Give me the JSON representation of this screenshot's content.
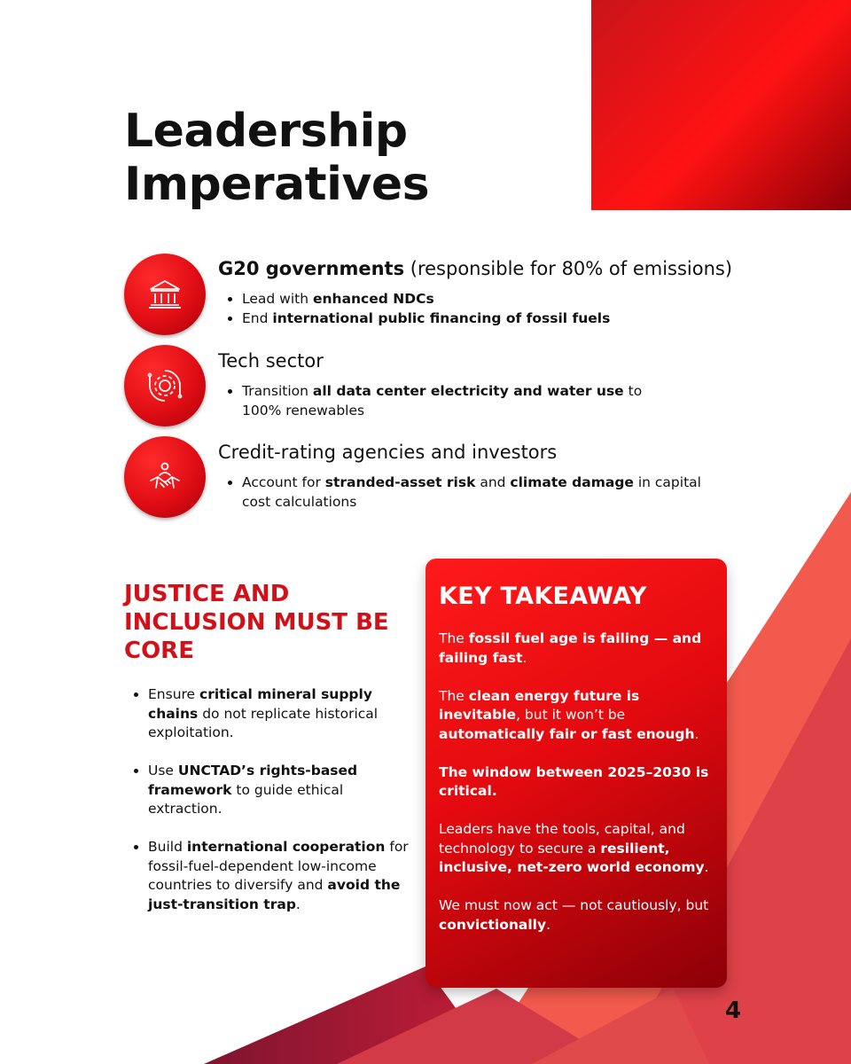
{
  "title": {
    "line1": "Leadership",
    "line2": "Imperatives"
  },
  "imperatives": [
    {
      "icon": "government-building-icon",
      "head_bold": "G20 governments",
      "head_rest": " (responsible for 80% of emissions)",
      "bullets": [
        {
          "pre": "Lead with ",
          "bold": "enhanced NDCs",
          "post": ""
        },
        {
          "pre": "End ",
          "bold": "international public financing of fossil fuels",
          "post": ""
        }
      ]
    },
    {
      "icon": "tech-gear-circuit-icon",
      "head_bold": "",
      "head_rest": "Tech sector",
      "bullets": [
        {
          "pre": "Transition ",
          "bold": "all data center electricity and water use",
          "post": " to 100% renewables"
        }
      ]
    },
    {
      "icon": "handshake-investors-icon",
      "head_bold": "",
      "head_rest": "Credit-rating agencies and investors",
      "bullets": [
        {
          "pre": "Account for ",
          "bold": "stranded-asset risk",
          "mid": " and ",
          "bold2": "climate damage",
          "post": " in capital cost calculations"
        }
      ]
    }
  ],
  "justice": {
    "title": "JUSTICE AND INCLUSION MUST BE CORE",
    "items": [
      {
        "pre": "Ensure ",
        "bold": "critical mineral supply chains",
        "post": " do not replicate historical exploitation."
      },
      {
        "pre": "Use ",
        "bold": "UNCTAD’s rights-based framework",
        "post": " to guide ethical extraction."
      },
      {
        "pre": "Build ",
        "bold": "international cooperation",
        "mid": " for fossil-fuel-dependent low-income countries to diversify and ",
        "bold2": "avoid the just-transition trap",
        "post": "."
      }
    ]
  },
  "takeaway": {
    "title": "KEY TAKEAWAY",
    "p1": {
      "pre": "The ",
      "bold": "fossil fuel age is failing — and failing fast",
      "post": "."
    },
    "p2": {
      "pre": "The ",
      "bold": "clean energy future is inevitable",
      "mid": ", but it won’t be ",
      "bold2": "automatically fair or fast enough",
      "post": "."
    },
    "p3": {
      "bold": "The window between 2025–2030 is critical."
    },
    "p4": {
      "pre": "Leaders have the tools, capital, and technology to secure a ",
      "bold": "resilient, inclusive, net-zero world economy",
      "post": "."
    },
    "p5": {
      "pre": "We must now act — not cautiously, but ",
      "bold": "convictionally",
      "post": "."
    }
  },
  "page_number": "4",
  "colors": {
    "accent_red": "#e00d14",
    "dark_red": "#8c0007",
    "text": "#111111"
  }
}
